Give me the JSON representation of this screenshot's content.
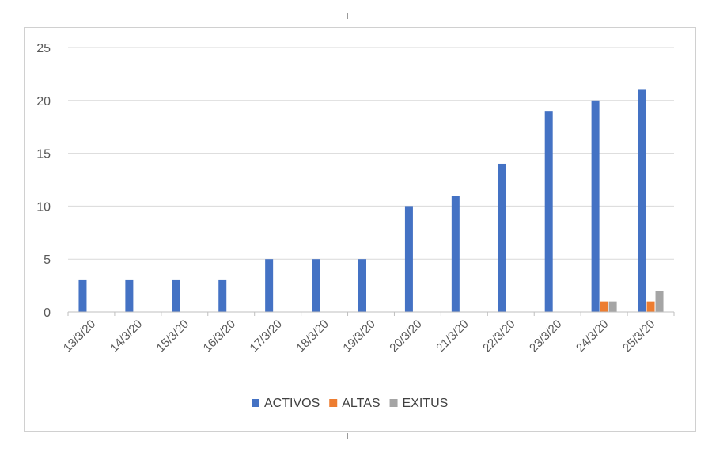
{
  "chart_data": {
    "type": "bar",
    "title": "",
    "xlabel": "",
    "ylabel": "",
    "ylim": [
      0,
      25
    ],
    "yticks": [
      0,
      5,
      10,
      15,
      20,
      25
    ],
    "grid": true,
    "legend_position": "bottom",
    "categories": [
      "13/3/20",
      "14/3/20",
      "15/3/20",
      "16/3/20",
      "17/3/20",
      "18/3/20",
      "19/3/20",
      "20/3/20",
      "21/3/20",
      "22/3/20",
      "23/3/20",
      "24/3/20",
      "25/3/20"
    ],
    "series": [
      {
        "name": "ACTIVOS",
        "color": "#4472C4",
        "values": [
          3,
          3,
          3,
          3,
          5,
          5,
          5,
          10,
          11,
          14,
          19,
          20,
          21
        ]
      },
      {
        "name": "ALTAS",
        "color": "#ED7D31",
        "values": [
          0,
          0,
          0,
          0,
          0,
          0,
          0,
          0,
          0,
          0,
          0,
          1,
          1
        ]
      },
      {
        "name": "EXITUS",
        "color": "#A5A5A5",
        "values": [
          0,
          0,
          0,
          0,
          0,
          0,
          0,
          0,
          0,
          0,
          0,
          1,
          2
        ]
      }
    ]
  }
}
